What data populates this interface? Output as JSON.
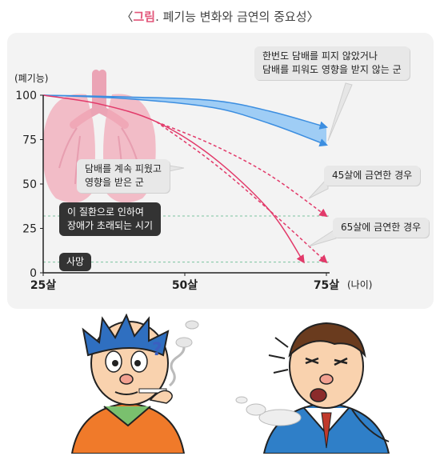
{
  "figure": {
    "title_open": "〈",
    "title_accent": "그림",
    "title_rest": ". 폐기능 변화와 금연의 중요성",
    "title_close": "〉"
  },
  "colors": {
    "never": "#3c8ee0",
    "never_fill": "#8fc6f5",
    "smoker": "#e23a6a",
    "dashed": "#e23a6a",
    "threshold": "#7cc3a0",
    "lung": "#f2a9b8"
  },
  "annotations": {
    "never_smoker": [
      "한번도 담배를 피지 않았거나",
      "담배를 피워도 영향을 받지 않는 군"
    ],
    "smoker": [
      "담배를 계속 피웠고",
      "영향을 받은 군"
    ],
    "quit45": "45살에 금연한 경우",
    "quit65": "65살에 금연한 경우",
    "disability": [
      "이 질환으로 인하여",
      "장애가 초래되는 시기"
    ],
    "death": "사망"
  },
  "chart_data": {
    "type": "line",
    "ylabel": "(폐기능)",
    "xlabel": "(나이)",
    "x_unit": "살",
    "x_ticks": [
      25,
      50,
      75
    ],
    "y_ticks": [
      0,
      25,
      50,
      75,
      100
    ],
    "xlim": [
      25,
      75
    ],
    "ylim": [
      0,
      100
    ],
    "thresholds": [
      {
        "label": "이 질환으로 인하여 장애가 초래되는 시기",
        "y": 32
      },
      {
        "label": "사망",
        "y": 6
      }
    ],
    "series": [
      {
        "name": "한번도 담배를 피지 않았거나 담배를 피워도 영향을 받지 않는 군",
        "style": "band",
        "x": [
          25,
          40,
          55,
          65,
          75
        ],
        "y": [
          100,
          99,
          97,
          91,
          82
        ],
        "y_lower": [
          100,
          98,
          93,
          84,
          72
        ]
      },
      {
        "name": "담배를 계속 피웠고 영향을 받은 군",
        "style": "solid",
        "x": [
          25,
          35,
          45,
          55,
          65,
          71
        ],
        "y": [
          100,
          95,
          85,
          65,
          35,
          6
        ]
      },
      {
        "name": "45살에 금연한 경우",
        "style": "dashed",
        "x": [
          45,
          55,
          65,
          75
        ],
        "y": [
          85,
          72,
          55,
          32
        ]
      },
      {
        "name": "65살에 금연한 경우",
        "style": "dashed",
        "x": [
          45,
          55,
          65,
          75
        ],
        "y": [
          85,
          62,
          35,
          6
        ]
      }
    ]
  }
}
